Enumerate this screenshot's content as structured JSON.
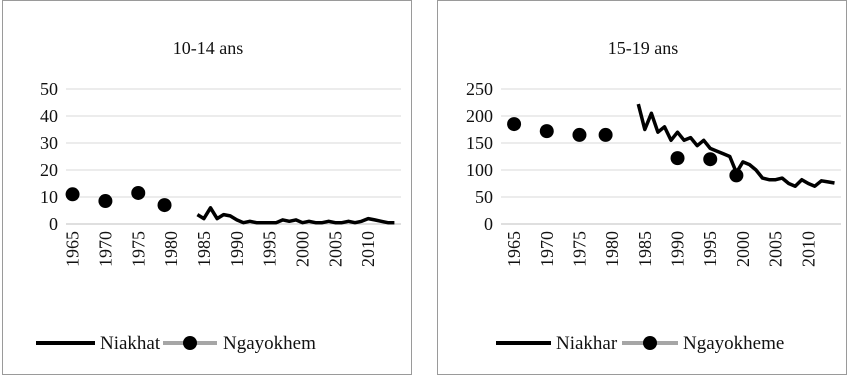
{
  "chart_data": [
    {
      "type": "line",
      "title": "10-14 ans",
      "xlabel": "",
      "ylabel": "",
      "ylim": [
        0,
        50
      ],
      "yticks": [
        "0",
        "10",
        "20",
        "30",
        "40",
        "50"
      ],
      "xticks": [
        "1965",
        "1970",
        "1975",
        "1980",
        "1985",
        "1990",
        "1995",
        "2000",
        "2005",
        "2010"
      ],
      "grid": true,
      "legend": "bottom",
      "series": [
        {
          "name": "Niakhat",
          "style": "line",
          "color": "#000000",
          "x": [
            1984,
            1985,
            1986,
            1987,
            1988,
            1989,
            1990,
            1991,
            1992,
            1993,
            1994,
            1995,
            1996,
            1997,
            1998,
            1999,
            2000,
            2001,
            2002,
            2003,
            2004,
            2005,
            2006,
            2007,
            2008,
            2009,
            2010,
            2011,
            2012,
            2013,
            2014
          ],
          "y": [
            3.5,
            2.0,
            6.0,
            2.0,
            3.5,
            3.0,
            1.5,
            0.5,
            1.0,
            0.5,
            0.5,
            0.5,
            0.5,
            1.5,
            1.0,
            1.5,
            0.5,
            1.0,
            0.5,
            0.5,
            1.0,
            0.5,
            0.5,
            1.0,
            0.5,
            1.0,
            2.0,
            1.5,
            1.0,
            0.5,
            0.5
          ]
        },
        {
          "name": "Ngayokhem",
          "style": "marker",
          "color": "#000000",
          "legend_line_color": "#a6a6a6",
          "x": [
            1965,
            1970,
            1975,
            1979
          ],
          "y": [
            11,
            8.5,
            11.5,
            7
          ]
        }
      ]
    },
    {
      "type": "line",
      "title": "15-19 ans",
      "xlabel": "",
      "ylabel": "",
      "ylim": [
        0,
        250
      ],
      "yticks": [
        "0",
        "50",
        "100",
        "150",
        "200",
        "250"
      ],
      "xticks": [
        "1965",
        "1970",
        "1975",
        "1980",
        "1985",
        "1990",
        "1995",
        "2000",
        "2005",
        "2010"
      ],
      "grid": true,
      "legend": "bottom",
      "series": [
        {
          "name": "Niakhar",
          "style": "line",
          "color": "#000000",
          "x": [
            1984,
            1985,
            1986,
            1987,
            1988,
            1989,
            1990,
            1991,
            1992,
            1993,
            1994,
            1995,
            1996,
            1997,
            1998,
            1999,
            2000,
            2001,
            2002,
            2003,
            2004,
            2005,
            2006,
            2007,
            2008,
            2009,
            2010,
            2011,
            2012,
            2013,
            2014
          ],
          "y": [
            222,
            175,
            205,
            170,
            180,
            155,
            170,
            155,
            160,
            145,
            155,
            140,
            135,
            130,
            125,
            95,
            115,
            110,
            100,
            85,
            82,
            82,
            85,
            75,
            70,
            82,
            75,
            70,
            80,
            78,
            76
          ]
        },
        {
          "name": "Ngayokheme",
          "style": "marker",
          "color": "#000000",
          "legend_line_color": "#a6a6a6",
          "x": [
            1965,
            1970,
            1975,
            1979,
            1990,
            1995,
            1999
          ],
          "y": [
            185,
            172,
            165,
            165,
            122,
            120,
            90
          ]
        }
      ]
    }
  ]
}
